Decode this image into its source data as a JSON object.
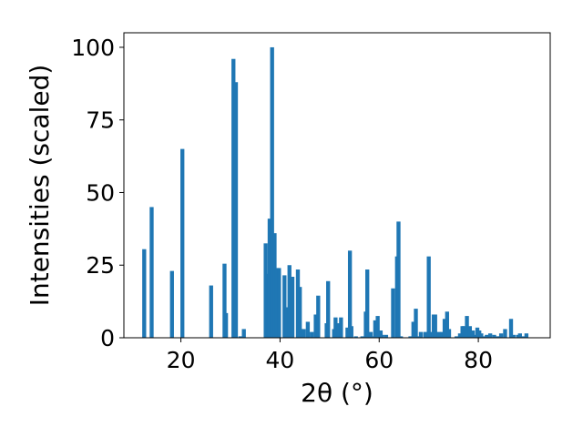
{
  "chart_data": {
    "type": "bar",
    "title": "",
    "xlabel": "2θ (°)",
    "ylabel": "Intensities (scaled)",
    "xlim": [
      8.5,
      94.5
    ],
    "ylim": [
      0,
      105
    ],
    "xticks": [
      20,
      40,
      60,
      80
    ],
    "yticks": [
      0,
      25,
      50,
      75,
      100
    ],
    "grid": false,
    "bar_color": "#1f77b4",
    "bar_width": 0.8,
    "x": [
      12.6,
      14.1,
      18.2,
      20.3,
      26.1,
      28.8,
      29.1,
      30.6,
      31.1,
      32.0,
      32.7,
      37.1,
      37.6,
      37.9,
      38.4,
      38.9,
      39.4,
      39.8,
      40.9,
      41.4,
      41.9,
      42.5,
      43.6,
      44.0,
      44.3,
      44.8,
      45.6,
      46.4,
      47.2,
      47.7,
      49.4,
      49.7,
      50.9,
      51.2,
      51.8,
      52.3,
      53.6,
      54.1,
      54.4,
      55.3,
      56.6,
      57.3,
      57.6,
      58.3,
      58.6,
      59.2,
      59.7,
      60.3,
      60.6,
      61.4,
      62.8,
      63.6,
      63.9,
      64.4,
      66.3,
      66.9,
      67.4,
      67.7,
      68.4,
      69.3,
      70.0,
      70.3,
      71.0,
      71.3,
      72.0,
      72.7,
      73.2,
      73.7,
      74.1,
      75.6,
      76.3,
      76.8,
      77.1,
      77.7,
      78.3,
      78.9,
      79.4,
      79.8,
      80.2,
      80.6,
      81.2,
      81.7,
      82.4,
      83.2,
      83.8,
      84.3,
      84.6,
      85.4,
      86.6,
      87.1,
      88.0,
      88.4,
      89.1,
      89.7
    ],
    "values": [
      30.5,
      45,
      23,
      65,
      18,
      25.5,
      8.5,
      96,
      88,
      0.5,
      3,
      32.5,
      22,
      41,
      100,
      36,
      24,
      24,
      21.5,
      10.5,
      25,
      21,
      23.5,
      17.5,
      3,
      3,
      5.5,
      2,
      8,
      14.5,
      5,
      19.5,
      3,
      7,
      5,
      7,
      3.5,
      30,
      4,
      0.5,
      0.5,
      9,
      23.5,
      2,
      0.5,
      6,
      7.5,
      2.5,
      1,
      1,
      17,
      28,
      40,
      0.5,
      0.5,
      5.5,
      10,
      0.5,
      2,
      2,
      28,
      2,
      8,
      8,
      2,
      2,
      6.5,
      9,
      3,
      0.5,
      1.5,
      4,
      4,
      7.5,
      4,
      2.5,
      1,
      3.5,
      2.5,
      1.5,
      0.5,
      1,
      1.5,
      1,
      0.5,
      0.5,
      1.5,
      3,
      6.5,
      1,
      1,
      1.5,
      0.5,
      1.5
    ]
  }
}
